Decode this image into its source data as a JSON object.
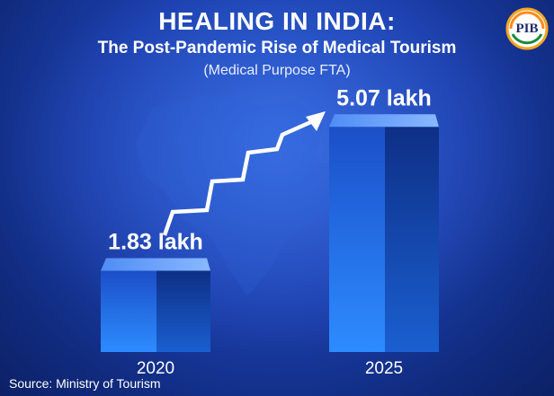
{
  "header": {
    "title": "HEALING IN INDIA:",
    "subtitle": "The Post-Pandemic Rise of Medical Tourism",
    "subtitle2": "(Medical Purpose FTA)"
  },
  "footer": {
    "source": "Source: Ministry of Tourism"
  },
  "logo": {
    "icon": "pib-logo-icon",
    "text": "PIB"
  },
  "colors": {
    "bar_front": "#1f5fe0",
    "bar_top": "#6aa6ff",
    "bar_side": "#123a9c",
    "arrow": "#ffffff"
  },
  "chart_data": {
    "type": "bar",
    "categories": [
      "2020",
      "2025"
    ],
    "values": [
      1.83,
      5.07
    ],
    "value_labels": [
      "1.83 lakh",
      "5.07 lakh"
    ],
    "title": "HEALING IN INDIA:",
    "subtitle": "The Post-Pandemic Rise of Medical Tourism",
    "xlabel": "",
    "ylabel": "",
    "ylim": [
      0,
      5.5
    ],
    "grid": false,
    "annotation": "upward-trend-arrow"
  }
}
